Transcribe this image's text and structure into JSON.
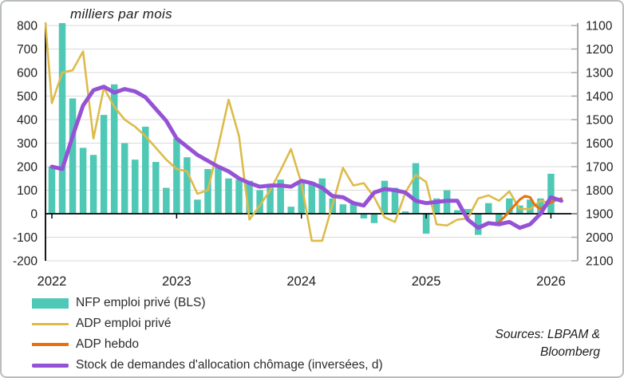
{
  "title": "milliers par mois",
  "sources": {
    "line1": "Sources: LBPAM &",
    "line2": "Bloomberg"
  },
  "legend": [
    {
      "label": "NFP emploi privé (BLS)",
      "swatch": "bar",
      "color": "#4fc9b6"
    },
    {
      "label": "ADP emploi privé",
      "swatch": "line",
      "color": "#ddbb4a"
    },
    {
      "label": "ADP hebdo",
      "swatch": "line-mid",
      "color": "#e8710f"
    },
    {
      "label": "Stock de demandes d'allocation chômage (inversées, d)",
      "swatch": "line-thick",
      "color": "#9552d6"
    }
  ],
  "chart_data": {
    "type": "combo",
    "title": "milliers par mois",
    "x_axis": {
      "unit": "months from Jan 2022",
      "tick_labels": [
        {
          "m": 0,
          "label": "2022"
        },
        {
          "m": 12,
          "label": "2023"
        },
        {
          "m": 24,
          "label": "2024"
        },
        {
          "m": 36,
          "label": "2025"
        },
        {
          "m": 48,
          "label": "2026"
        }
      ]
    },
    "left_axis": {
      "min": -200,
      "max": 800,
      "step": 100
    },
    "right_axis": {
      "min": 1100,
      "max": 2100,
      "step": 100,
      "inverted": true
    },
    "grid": true,
    "legend_position": "bottom-left",
    "series": [
      {
        "name": "NFP emploi privé (BLS)",
        "type": "bar",
        "axis": "left",
        "color": "#4fc9b6",
        "points": [
          [
            0,
            200
          ],
          [
            1,
            840
          ],
          [
            2,
            490
          ],
          [
            3,
            280
          ],
          [
            4,
            250
          ],
          [
            5,
            420
          ],
          [
            6,
            550
          ],
          [
            7,
            300
          ],
          [
            8,
            230
          ],
          [
            9,
            370
          ],
          [
            10,
            220
          ],
          [
            11,
            110
          ],
          [
            12,
            320
          ],
          [
            13,
            240
          ],
          [
            14,
            60
          ],
          [
            15,
            190
          ],
          [
            16,
            205
          ],
          [
            17,
            150
          ],
          [
            18,
            145
          ],
          [
            19,
            140
          ],
          [
            20,
            100
          ],
          [
            21,
            115
          ],
          [
            22,
            145
          ],
          [
            23,
            30
          ],
          [
            24,
            140
          ],
          [
            25,
            135
          ],
          [
            26,
            150
          ],
          [
            27,
            65
          ],
          [
            28,
            40
          ],
          [
            29,
            50
          ],
          [
            30,
            -20
          ],
          [
            31,
            -40
          ],
          [
            32,
            140
          ],
          [
            33,
            110
          ],
          [
            34,
            10
          ],
          [
            35,
            215
          ],
          [
            36,
            -85
          ],
          [
            37,
            65
          ],
          [
            38,
            100
          ],
          [
            39,
            15
          ],
          [
            40,
            20
          ],
          [
            41,
            -90
          ],
          [
            42,
            45
          ],
          [
            43,
            -40
          ],
          [
            44,
            65
          ],
          [
            45,
            35
          ],
          [
            46,
            60
          ],
          [
            47,
            65
          ],
          [
            48,
            170
          ]
        ]
      },
      {
        "name": "ADP emploi privé",
        "type": "line",
        "axis": "left",
        "color": "#ddbb4a",
        "width": 2.6,
        "points": [
          [
            -1,
            820
          ],
          [
            0,
            470
          ],
          [
            1,
            600
          ],
          [
            2,
            610
          ],
          [
            3,
            690
          ],
          [
            4,
            320
          ],
          [
            5,
            535
          ],
          [
            6,
            455
          ],
          [
            7,
            400
          ],
          [
            8,
            370
          ],
          [
            9,
            330
          ],
          [
            10,
            280
          ],
          [
            11,
            230
          ],
          [
            12,
            190
          ],
          [
            13,
            180
          ],
          [
            14,
            85
          ],
          [
            15,
            100
          ],
          [
            16,
            285
          ],
          [
            17,
            485
          ],
          [
            18,
            330
          ],
          [
            19,
            -25
          ],
          [
            20,
            35
          ],
          [
            21,
            100
          ],
          [
            22,
            185
          ],
          [
            23,
            275
          ],
          [
            24,
            130
          ],
          [
            25,
            -115
          ],
          [
            26,
            -115
          ],
          [
            27,
            40
          ],
          [
            28,
            195
          ],
          [
            29,
            120
          ],
          [
            30,
            130
          ],
          [
            31,
            70
          ],
          [
            32,
            -15
          ],
          [
            33,
            -35
          ],
          [
            34,
            90
          ],
          [
            35,
            165
          ],
          [
            36,
            135
          ],
          [
            37,
            -45
          ],
          [
            38,
            -50
          ],
          [
            39,
            -25
          ],
          [
            40,
            -20
          ],
          [
            41,
            65
          ],
          [
            42,
            78
          ],
          [
            43,
            55
          ],
          [
            44,
            95
          ],
          [
            45,
            20
          ],
          [
            46,
            20
          ],
          [
            47,
            55
          ],
          [
            48,
            45
          ]
        ]
      },
      {
        "name": "ADP hebdo",
        "type": "line",
        "axis": "left",
        "color": "#e8710f",
        "width": 3,
        "points": [
          [
            42.5,
            -45
          ],
          [
            43,
            -35
          ],
          [
            43.5,
            -15
          ],
          [
            44,
            10
          ],
          [
            44.5,
            35
          ],
          [
            45,
            60
          ],
          [
            45.5,
            75
          ],
          [
            46,
            70
          ],
          [
            46.4,
            40
          ],
          [
            46.8,
            25
          ],
          [
            47,
            22
          ],
          [
            47.5,
            35
          ],
          [
            48,
            48
          ],
          [
            48.5,
            58
          ],
          [
            49,
            65
          ]
        ]
      },
      {
        "name": "Stock de demandes d'allocation chômage (inversées, d)",
        "type": "line",
        "axis": "right",
        "color": "#9552d6",
        "width": 5,
        "points": [
          [
            0,
            1700
          ],
          [
            1,
            1710
          ],
          [
            2,
            1570
          ],
          [
            3,
            1440
          ],
          [
            4,
            1375
          ],
          [
            5,
            1360
          ],
          [
            6,
            1385
          ],
          [
            7,
            1370
          ],
          [
            8,
            1380
          ],
          [
            9,
            1405
          ],
          [
            10,
            1455
          ],
          [
            11,
            1505
          ],
          [
            12,
            1580
          ],
          [
            13,
            1615
          ],
          [
            14,
            1650
          ],
          [
            15,
            1675
          ],
          [
            16,
            1700
          ],
          [
            17,
            1720
          ],
          [
            18,
            1750
          ],
          [
            19,
            1770
          ],
          [
            20,
            1785
          ],
          [
            21,
            1780
          ],
          [
            22,
            1780
          ],
          [
            23,
            1785
          ],
          [
            24,
            1760
          ],
          [
            25,
            1770
          ],
          [
            26,
            1790
          ],
          [
            27,
            1825
          ],
          [
            28,
            1830
          ],
          [
            29,
            1855
          ],
          [
            30,
            1865
          ],
          [
            31,
            1810
          ],
          [
            32,
            1795
          ],
          [
            33,
            1800
          ],
          [
            34,
            1810
          ],
          [
            35,
            1845
          ],
          [
            36,
            1855
          ],
          [
            37,
            1850
          ],
          [
            38,
            1845
          ],
          [
            39,
            1845
          ],
          [
            40,
            1925
          ],
          [
            41,
            1960
          ],
          [
            42,
            1940
          ],
          [
            43,
            1945
          ],
          [
            44,
            1935
          ],
          [
            45,
            1960
          ],
          [
            46,
            1945
          ],
          [
            47,
            1900
          ],
          [
            48,
            1830
          ],
          [
            49,
            1845
          ]
        ]
      }
    ]
  }
}
